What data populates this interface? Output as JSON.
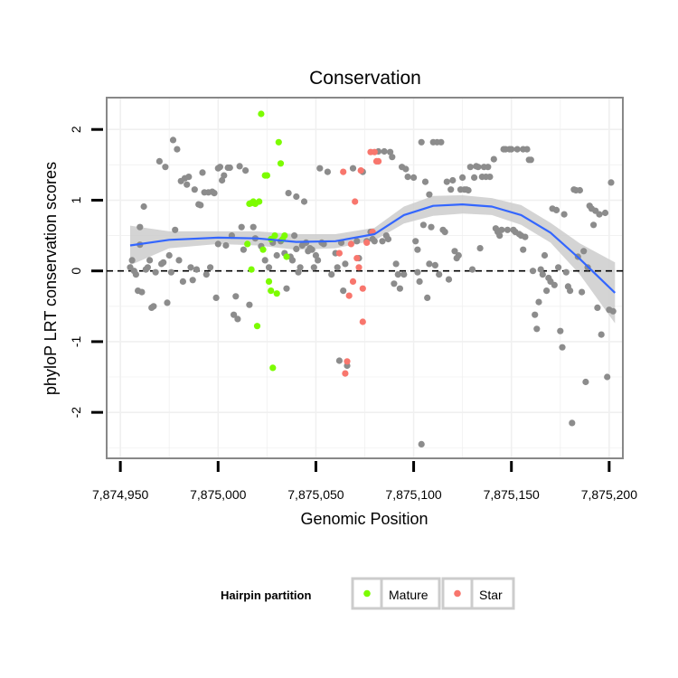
{
  "chart_data": {
    "type": "scatter",
    "title": "Conservation",
    "xlabel": "Genomic Position",
    "ylabel": "phyloP LRT conservation scores",
    "xlim": [
      7874943,
      7875207
    ],
    "ylim": [
      -2.65,
      2.45
    ],
    "xticks": [
      7874950,
      7875000,
      7875050,
      7875100,
      7875150,
      7875200
    ],
    "xtick_labels": [
      "7,874,950",
      "7,875,000",
      "7,875,050",
      "7,875,100",
      "7,875,150",
      "7,875,200"
    ],
    "yticks": [
      -2,
      -1,
      0,
      1,
      2
    ],
    "ytick_labels": [
      "-2",
      "-1",
      "0",
      "1",
      "2"
    ],
    "reference_line": {
      "y": 0,
      "style": "dashed"
    },
    "colors": {
      "Other": "#8c8c8c",
      "Mature": "#7cfc00",
      "Star": "#f8766d",
      "Smooth": "#3366ff",
      "Ribbon": "#cccccc"
    },
    "legend": {
      "title": "Hairpin partition",
      "position": "bottom",
      "entries": [
        {
          "name": "Mature",
          "color": "#7cfc00"
        },
        {
          "name": "Star",
          "color": "#f8766d"
        }
      ]
    },
    "smooth": {
      "x": [
        7874955,
        7874975,
        7875000,
        7875020,
        7875040,
        7875060,
        7875080,
        7875095,
        7875110,
        7875125,
        7875140,
        7875155,
        7875170,
        7875185,
        7875203
      ],
      "y": [
        0.36,
        0.44,
        0.47,
        0.46,
        0.41,
        0.42,
        0.52,
        0.79,
        0.92,
        0.94,
        0.91,
        0.79,
        0.54,
        0.17,
        -0.31
      ],
      "upper": [
        0.64,
        0.56,
        0.56,
        0.56,
        0.52,
        0.52,
        0.61,
        0.91,
        1.06,
        1.07,
        1.03,
        0.93,
        0.68,
        0.39,
        0.12
      ],
      "lower": [
        0.08,
        0.32,
        0.38,
        0.36,
        0.3,
        0.32,
        0.43,
        0.67,
        0.78,
        0.81,
        0.79,
        0.65,
        0.4,
        -0.05,
        -0.74
      ]
    },
    "series": [
      {
        "name": "Other",
        "points": [
          [
            7874955,
            0.05
          ],
          [
            7874956,
            0.15
          ],
          [
            7874957,
            0.0
          ],
          [
            7874958,
            -0.05
          ],
          [
            7874959,
            -0.28
          ],
          [
            7874960,
            0.37
          ],
          [
            7874960,
            0.62
          ],
          [
            7874961,
            -0.3
          ],
          [
            7874962,
            0.91
          ],
          [
            7874963,
            0.02
          ],
          [
            7874964,
            0.05
          ],
          [
            7874965,
            0.15
          ],
          [
            7874966,
            -0.52
          ],
          [
            7874967,
            -0.5
          ],
          [
            7874968,
            -0.02
          ],
          [
            7874970,
            1.55
          ],
          [
            7874971,
            0.1
          ],
          [
            7874972,
            0.12
          ],
          [
            7874973,
            1.47
          ],
          [
            7874974,
            -0.45
          ],
          [
            7874975,
            0.22
          ],
          [
            7874976,
            -0.02
          ],
          [
            7874977,
            1.85
          ],
          [
            7874978,
            0.58
          ],
          [
            7874979,
            1.72
          ],
          [
            7874980,
            0.15
          ],
          [
            7874981,
            1.27
          ],
          [
            7874982,
            -0.15
          ],
          [
            7874983,
            1.31
          ],
          [
            7874984,
            1.22
          ],
          [
            7874985,
            1.33
          ],
          [
            7874986,
            0.05
          ],
          [
            7874987,
            -0.13
          ],
          [
            7874988,
            1.15
          ],
          [
            7874989,
            0.02
          ],
          [
            7874990,
            0.94
          ],
          [
            7874991,
            0.93
          ],
          [
            7874992,
            1.39
          ],
          [
            7874993,
            1.11
          ],
          [
            7874994,
            -0.05
          ],
          [
            7874995,
            1.11
          ],
          [
            7874996,
            0.05
          ],
          [
            7874997,
            1.12
          ],
          [
            7874998,
            1.1
          ],
          [
            7874999,
            -0.38
          ],
          [
            7875000,
            0.38
          ],
          [
            7875000,
            1.45
          ],
          [
            7875001,
            1.47
          ],
          [
            7875002,
            1.28
          ],
          [
            7875003,
            1.35
          ],
          [
            7875004,
            0.36
          ],
          [
            7875005,
            1.46
          ],
          [
            7875006,
            1.46
          ],
          [
            7875007,
            0.5
          ],
          [
            7875008,
            -0.62
          ],
          [
            7875009,
            -0.36
          ],
          [
            7875010,
            -0.68
          ],
          [
            7875011,
            1.48
          ],
          [
            7875012,
            0.62
          ],
          [
            7875013,
            0.3
          ],
          [
            7875014,
            1.42
          ],
          [
            7875016,
            -0.48
          ],
          [
            7875018,
            0.62
          ],
          [
            7875019,
            0.46
          ],
          [
            7875022,
            0.35
          ],
          [
            7875024,
            0.15
          ],
          [
            7875026,
            0.05
          ],
          [
            7875028,
            0.4
          ],
          [
            7875030,
            0.22
          ],
          [
            7875032,
            0.42
          ],
          [
            7875034,
            0.25
          ],
          [
            7875035,
            -0.25
          ],
          [
            7875036,
            1.1
          ],
          [
            7875037,
            0.2
          ],
          [
            7875038,
            0.15
          ],
          [
            7875039,
            0.5
          ],
          [
            7875040,
            1.05
          ],
          [
            7875040,
            0.31
          ],
          [
            7875041,
            -0.02
          ],
          [
            7875042,
            0.05
          ],
          [
            7875043,
            0.36
          ],
          [
            7875044,
            0.98
          ],
          [
            7875045,
            0.4
          ],
          [
            7875046,
            0.28
          ],
          [
            7875047,
            0.32
          ],
          [
            7875048,
            0.3
          ],
          [
            7875049,
            0.05
          ],
          [
            7875050,
            0.22
          ],
          [
            7875051,
            0.15
          ],
          [
            7875052,
            1.45
          ],
          [
            7875053,
            0.4
          ],
          [
            7875054,
            0.38
          ],
          [
            7875056,
            1.4
          ],
          [
            7875058,
            -0.05
          ],
          [
            7875060,
            0.25
          ],
          [
            7875061,
            0.05
          ],
          [
            7875062,
            -1.27
          ],
          [
            7875063,
            0.4
          ],
          [
            7875064,
            -0.28
          ],
          [
            7875065,
            0.1
          ],
          [
            7875066,
            -1.34
          ],
          [
            7875069,
            1.45
          ],
          [
            7875071,
            0.42
          ],
          [
            7875072,
            0.18
          ],
          [
            7875074,
            1.4
          ],
          [
            7875076,
            0.42
          ],
          [
            7875078,
            0.55
          ],
          [
            7875079,
            0.45
          ],
          [
            7875080,
            0.42
          ],
          [
            7875082,
            1.69
          ],
          [
            7875084,
            0.42
          ],
          [
            7875085,
            1.69
          ],
          [
            7875086,
            0.5
          ],
          [
            7875087,
            0.45
          ],
          [
            7875088,
            1.68
          ],
          [
            7875089,
            1.61
          ],
          [
            7875090,
            -0.18
          ],
          [
            7875091,
            0.1
          ],
          [
            7875092,
            -0.05
          ],
          [
            7875093,
            -0.25
          ],
          [
            7875094,
            1.47
          ],
          [
            7875095,
            -0.05
          ],
          [
            7875096,
            1.44
          ],
          [
            7875097,
            1.33
          ],
          [
            7875100,
            1.32
          ],
          [
            7875101,
            0.42
          ],
          [
            7875102,
            0.3
          ],
          [
            7875102,
            -0.02
          ],
          [
            7875103,
            -0.15
          ],
          [
            7875104,
            -2.45
          ],
          [
            7875104,
            1.82
          ],
          [
            7875105,
            0.65
          ],
          [
            7875106,
            1.26
          ],
          [
            7875107,
            -0.38
          ],
          [
            7875108,
            1.08
          ],
          [
            7875108,
            0.1
          ],
          [
            7875109,
            0.62
          ],
          [
            7875110,
            1.82
          ],
          [
            7875111,
            0.08
          ],
          [
            7875112,
            1.82
          ],
          [
            7875113,
            -0.05
          ],
          [
            7875114,
            1.82
          ],
          [
            7875115,
            0.58
          ],
          [
            7875116,
            0.55
          ],
          [
            7875117,
            1.26
          ],
          [
            7875118,
            -0.12
          ],
          [
            7875119,
            1.15
          ],
          [
            7875120,
            1.28
          ],
          [
            7875121,
            0.28
          ],
          [
            7875122,
            0.18
          ],
          [
            7875123,
            0.22
          ],
          [
            7875124,
            1.15
          ],
          [
            7875125,
            1.32
          ],
          [
            7875126,
            1.15
          ],
          [
            7875127,
            1.15
          ],
          [
            7875128,
            1.14
          ],
          [
            7875129,
            1.47
          ],
          [
            7875130,
            0.02
          ],
          [
            7875131,
            1.32
          ],
          [
            7875132,
            1.48
          ],
          [
            7875133,
            1.47
          ],
          [
            7875134,
            0.32
          ],
          [
            7875135,
            1.33
          ],
          [
            7875136,
            1.47
          ],
          [
            7875137,
            1.33
          ],
          [
            7875138,
            1.47
          ],
          [
            7875139,
            1.33
          ],
          [
            7875141,
            1.58
          ],
          [
            7875142,
            0.6
          ],
          [
            7875143,
            0.55
          ],
          [
            7875144,
            0.5
          ],
          [
            7875145,
            0.58
          ],
          [
            7875146,
            1.72
          ],
          [
            7875147,
            1.72
          ],
          [
            7875148,
            0.58
          ],
          [
            7875149,
            1.72
          ],
          [
            7875150,
            1.72
          ],
          [
            7875151,
            0.58
          ],
          [
            7875152,
            0.55
          ],
          [
            7875153,
            1.72
          ],
          [
            7875154,
            0.52
          ],
          [
            7875155,
            0.5
          ],
          [
            7875156,
            0.3
          ],
          [
            7875156,
            1.72
          ],
          [
            7875157,
            0.48
          ],
          [
            7875158,
            1.72
          ],
          [
            7875159,
            1.57
          ],
          [
            7875160,
            1.57
          ],
          [
            7875161,
            0.0
          ],
          [
            7875162,
            -0.62
          ],
          [
            7875163,
            -0.82
          ],
          [
            7875164,
            -0.44
          ],
          [
            7875165,
            0.02
          ],
          [
            7875166,
            -0.05
          ],
          [
            7875167,
            0.22
          ],
          [
            7875168,
            -0.28
          ],
          [
            7875169,
            -0.1
          ],
          [
            7875170,
            -0.15
          ],
          [
            7875171,
            0.88
          ],
          [
            7875172,
            -0.2
          ],
          [
            7875173,
            0.86
          ],
          [
            7875174,
            0.05
          ],
          [
            7875175,
            -0.85
          ],
          [
            7875176,
            -1.08
          ],
          [
            7875177,
            0.8
          ],
          [
            7875178,
            -0.02
          ],
          [
            7875179,
            -0.22
          ],
          [
            7875180,
            -0.28
          ],
          [
            7875181,
            -2.15
          ],
          [
            7875182,
            1.15
          ],
          [
            7875183,
            1.14
          ],
          [
            7875184,
            0.2
          ],
          [
            7875185,
            1.14
          ],
          [
            7875186,
            -0.3
          ],
          [
            7875187,
            0.28
          ],
          [
            7875188,
            -1.57
          ],
          [
            7875189,
            0.05
          ],
          [
            7875190,
            0.92
          ],
          [
            7875191,
            0.88
          ],
          [
            7875192,
            0.65
          ],
          [
            7875193,
            0.85
          ],
          [
            7875194,
            -0.52
          ],
          [
            7875195,
            0.8
          ],
          [
            7875196,
            -0.9
          ],
          [
            7875198,
            0.82
          ],
          [
            7875199,
            -1.5
          ],
          [
            7875200,
            -0.55
          ],
          [
            7875201,
            1.25
          ],
          [
            7875202,
            -0.57
          ]
        ]
      },
      {
        "name": "Mature",
        "points": [
          [
            7875015,
            0.38
          ],
          [
            7875016,
            0.95
          ],
          [
            7875017,
            0.96
          ],
          [
            7875018,
            0.98
          ],
          [
            7875019,
            0.95
          ],
          [
            7875020,
            -0.78
          ],
          [
            7875021,
            0.98
          ],
          [
            7875022,
            2.22
          ],
          [
            7875023,
            0.3
          ],
          [
            7875024,
            1.35
          ],
          [
            7875025,
            1.35
          ],
          [
            7875026,
            -0.15
          ],
          [
            7875027,
            -0.28
          ],
          [
            7875027,
            0.45
          ],
          [
            7875028,
            -1.37
          ],
          [
            7875029,
            0.5
          ],
          [
            7875030,
            -0.32
          ],
          [
            7875031,
            1.82
          ],
          [
            7875032,
            1.52
          ],
          [
            7875033,
            0.45
          ],
          [
            7875034,
            0.5
          ],
          [
            7875035,
            0.2
          ],
          [
            7875017,
            0.02
          ]
        ]
      },
      {
        "name": "Star",
        "points": [
          [
            7875062,
            0.25
          ],
          [
            7875064,
            1.4
          ],
          [
            7875065,
            -1.45
          ],
          [
            7875066,
            -1.28
          ],
          [
            7875067,
            -0.35
          ],
          [
            7875068,
            0.38
          ],
          [
            7875069,
            -0.15
          ],
          [
            7875070,
            0.98
          ],
          [
            7875071,
            0.18
          ],
          [
            7875072,
            0.05
          ],
          [
            7875073,
            1.42
          ],
          [
            7875074,
            -0.72
          ],
          [
            7875076,
            0.4
          ],
          [
            7875078,
            1.68
          ],
          [
            7875079,
            0.55
          ],
          [
            7875080,
            1.68
          ],
          [
            7875081,
            1.55
          ],
          [
            7875082,
            1.55
          ],
          [
            7875074,
            -0.25
          ]
        ]
      }
    ]
  }
}
